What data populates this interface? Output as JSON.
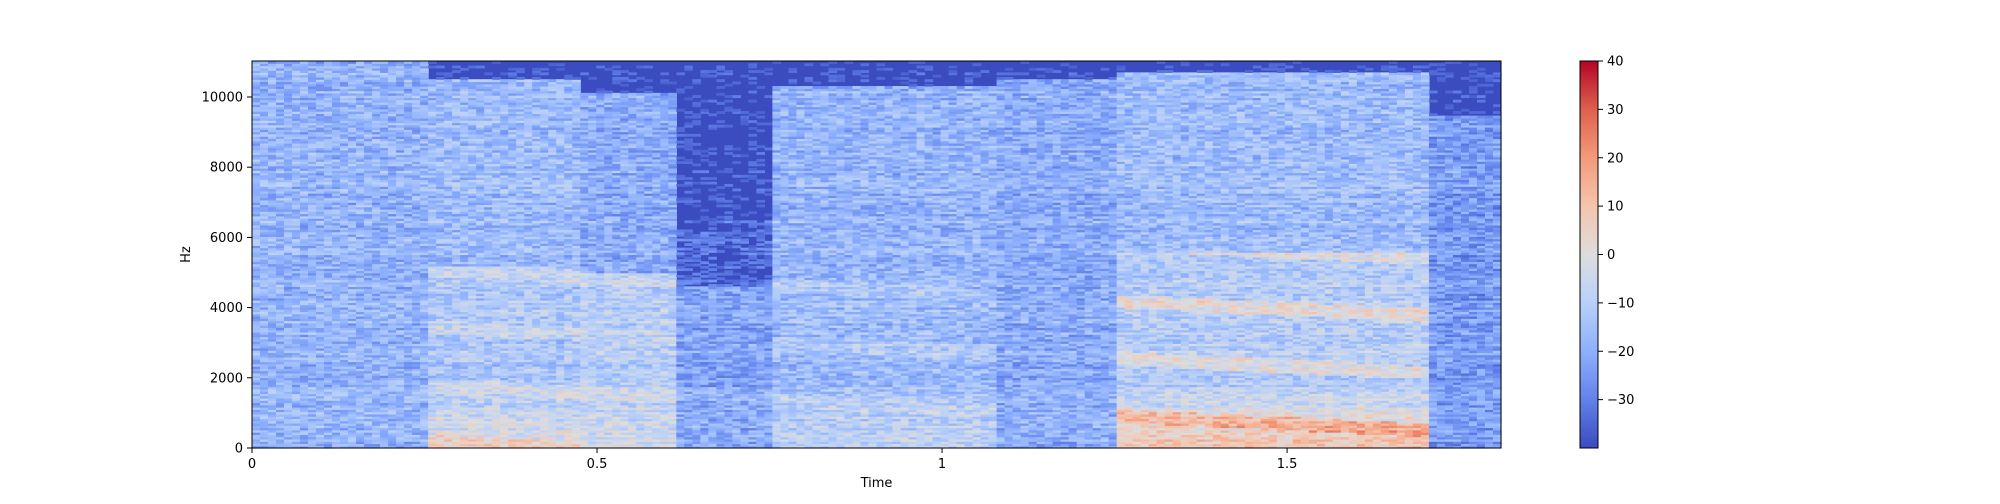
{
  "chart_data": {
    "type": "heatmap",
    "title": "",
    "xlabel": "Time",
    "ylabel": "Hz",
    "xlim": [
      0,
      1.81
    ],
    "ylim": [
      0,
      11025
    ],
    "xticks": [
      0,
      0.5,
      1,
      1.5
    ],
    "xtick_labels": [
      "0",
      "0.5",
      "1",
      "1.5"
    ],
    "yticks": [
      0,
      2000,
      4000,
      6000,
      8000,
      10000
    ],
    "ytick_labels": [
      "0",
      "2000",
      "4000",
      "6000",
      "8000",
      "10000"
    ],
    "colorbar": {
      "min": -40,
      "max": 40,
      "ticks": [
        -30,
        -20,
        -10,
        0,
        10,
        20,
        30,
        40
      ],
      "tick_labels": [
        "−30",
        "−20",
        "−10",
        "0",
        "10",
        "20",
        "30",
        "40"
      ],
      "colormap": "coolwarm"
    },
    "segments": [
      {
        "t0": 0.0,
        "t1": 0.26,
        "level": -18,
        "low_boost": 0,
        "band_top": 11000,
        "hf_level": -12,
        "hf_top": 10800
      },
      {
        "t0": 0.26,
        "t1": 0.48,
        "level": -12,
        "low_boost": 14,
        "band_top": 5200,
        "hf_level": -16,
        "hf_top": 10500
      },
      {
        "t0": 0.48,
        "t1": 0.62,
        "level": -10,
        "low_boost": 8,
        "band_top": 5000,
        "hf_level": -20,
        "hf_top": 10100
      },
      {
        "t0": 0.62,
        "t1": 0.75,
        "level": -22,
        "low_boost": 2,
        "band_top": 4600,
        "hf_level": -35,
        "hf_top": 6500
      },
      {
        "t0": 0.75,
        "t1": 1.08,
        "level": -16,
        "low_boost": 10,
        "band_top": 5200,
        "hf_level": -18,
        "hf_top": 10300
      },
      {
        "t0": 1.08,
        "t1": 1.25,
        "level": -20,
        "low_boost": 0,
        "band_top": 10500,
        "hf_level": -22,
        "hf_top": 10500
      },
      {
        "t0": 1.25,
        "t1": 1.7,
        "level": -10,
        "low_boost": 22,
        "band_top": 5600,
        "hf_level": -16,
        "hf_top": 10700
      },
      {
        "t0": 1.7,
        "t1": 1.81,
        "level": -24,
        "low_boost": 0,
        "band_top": 9500,
        "hf_level": -26,
        "hf_top": 9500
      }
    ]
  }
}
